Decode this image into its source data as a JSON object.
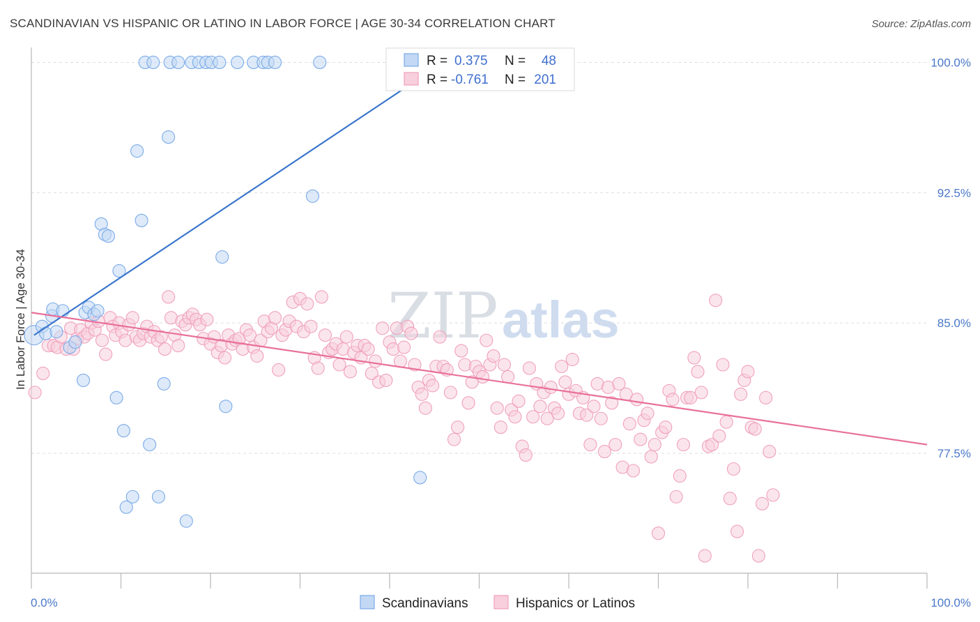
{
  "chart_data": {
    "type": "scatter",
    "title": "SCANDINAVIAN VS HISPANIC OR LATINO IN LABOR FORCE | AGE 30-34 CORRELATION CHART",
    "source": "Source: ZipAtlas.com",
    "ylabel": "In Labor Force | Age 30-34",
    "xlim": [
      0,
      100
    ],
    "ylim": [
      70.6,
      100.7
    ],
    "yticks": [
      {
        "value": 100.0,
        "label": "100.0%"
      },
      {
        "value": 92.5,
        "label": "92.5%"
      },
      {
        "value": 85.0,
        "label": "85.0%"
      },
      {
        "value": 77.5,
        "label": "77.5%"
      }
    ],
    "xtick_labels": {
      "left": "0.0%",
      "right": "100.0%"
    },
    "watermark": {
      "zip": "ZIP",
      "atlas": "atlas"
    },
    "legend": {
      "r_label": "R =",
      "n_label": "N =",
      "entries": [
        {
          "r": "0.375",
          "n": "48"
        },
        {
          "r": "-0.761",
          "n": "201"
        }
      ]
    },
    "series": [
      {
        "name": "Scandinavians",
        "color": "#7aaae8",
        "fill": "#c3d8f4",
        "trend": {
          "x0": 0.3,
          "y0": 84.3,
          "x1": 46.0,
          "y1": 100.0,
          "color": "#3a76cc"
        },
        "points": [
          [
            0.3,
            84.3
          ],
          [
            1.2,
            84.8
          ],
          [
            1.6,
            84.4
          ],
          [
            2.3,
            85.4
          ],
          [
            2.4,
            85.8
          ],
          [
            2.8,
            84.5
          ],
          [
            3.5,
            85.7
          ],
          [
            4.3,
            83.6
          ],
          [
            4.9,
            83.9
          ],
          [
            6.0,
            85.6
          ],
          [
            6.4,
            85.9
          ],
          [
            7.0,
            85.5
          ],
          [
            7.4,
            85.7
          ],
          [
            5.8,
            81.7
          ],
          [
            7.8,
            90.7
          ],
          [
            8.2,
            90.1
          ],
          [
            8.6,
            90.0
          ],
          [
            9.5,
            80.7
          ],
          [
            9.8,
            88.0
          ],
          [
            10.3,
            78.8
          ],
          [
            10.6,
            74.4
          ],
          [
            11.3,
            75.0
          ],
          [
            11.8,
            94.9
          ],
          [
            12.3,
            90.9
          ],
          [
            12.7,
            100.0
          ],
          [
            13.2,
            78.0
          ],
          [
            13.6,
            100.0
          ],
          [
            14.2,
            75.0
          ],
          [
            14.8,
            81.5
          ],
          [
            15.3,
            95.7
          ],
          [
            15.5,
            100.0
          ],
          [
            16.4,
            100.0
          ],
          [
            17.3,
            73.6
          ],
          [
            17.9,
            100.0
          ],
          [
            18.7,
            100.0
          ],
          [
            19.5,
            100.0
          ],
          [
            20.1,
            100.0
          ],
          [
            21.0,
            100.0
          ],
          [
            21.3,
            88.8
          ],
          [
            21.7,
            80.2
          ],
          [
            23.0,
            100.0
          ],
          [
            24.8,
            100.0
          ],
          [
            25.9,
            100.0
          ],
          [
            26.4,
            100.0
          ],
          [
            27.2,
            100.0
          ],
          [
            31.4,
            92.3
          ],
          [
            32.2,
            100.0
          ],
          [
            43.4,
            76.1
          ]
        ]
      },
      {
        "name": "Hispanics or Latinos",
        "color": "#f0a0bc",
        "fill": "#f8cfdc",
        "trend": {
          "x0": 0.0,
          "y0": 85.6,
          "x1": 100.0,
          "y1": 78.0,
          "color": "#e8709a"
        },
        "points": [
          [
            0.4,
            81.0
          ],
          [
            1.3,
            82.1
          ],
          [
            1.9,
            83.7
          ],
          [
            2.5,
            83.7
          ],
          [
            2.9,
            83.6
          ],
          [
            3.3,
            84.2
          ],
          [
            3.9,
            83.5
          ],
          [
            4.4,
            84.7
          ],
          [
            4.7,
            83.5
          ],
          [
            5.1,
            84.1
          ],
          [
            5.5,
            84.6
          ],
          [
            5.9,
            84.2
          ],
          [
            6.3,
            84.4
          ],
          [
            6.7,
            85.0
          ],
          [
            7.1,
            84.6
          ],
          [
            7.5,
            85.1
          ],
          [
            7.9,
            84.0
          ],
          [
            8.3,
            83.2
          ],
          [
            8.8,
            85.3
          ],
          [
            9.1,
            84.8
          ],
          [
            9.4,
            84.3
          ],
          [
            9.8,
            85.0
          ],
          [
            10.1,
            84.5
          ],
          [
            10.5,
            84.0
          ],
          [
            10.9,
            84.9
          ],
          [
            11.3,
            85.3
          ],
          [
            11.7,
            84.2
          ],
          [
            12.1,
            84.0
          ],
          [
            12.5,
            84.4
          ],
          [
            12.9,
            84.8
          ],
          [
            13.3,
            84.2
          ],
          [
            13.7,
            84.5
          ],
          [
            14.1,
            84.0
          ],
          [
            14.5,
            84.2
          ],
          [
            14.9,
            83.5
          ],
          [
            15.3,
            86.5
          ],
          [
            15.6,
            85.3
          ],
          [
            16.0,
            84.3
          ],
          [
            16.4,
            83.7
          ],
          [
            16.8,
            85.1
          ],
          [
            17.2,
            84.9
          ],
          [
            17.6,
            85.3
          ],
          [
            18.0,
            85.5
          ],
          [
            18.4,
            85.2
          ],
          [
            18.8,
            84.9
          ],
          [
            19.2,
            84.1
          ],
          [
            19.6,
            85.2
          ],
          [
            20.0,
            83.8
          ],
          [
            20.4,
            84.2
          ],
          [
            20.8,
            83.3
          ],
          [
            21.2,
            83.7
          ],
          [
            21.6,
            83.0
          ],
          [
            22.0,
            84.3
          ],
          [
            22.4,
            83.8
          ],
          [
            22.8,
            84.0
          ],
          [
            23.2,
            84.1
          ],
          [
            23.6,
            83.5
          ],
          [
            24.0,
            84.6
          ],
          [
            24.4,
            84.3
          ],
          [
            24.8,
            83.6
          ],
          [
            25.2,
            83.1
          ],
          [
            25.6,
            84.0
          ],
          [
            26.0,
            85.1
          ],
          [
            26.4,
            84.5
          ],
          [
            26.8,
            84.7
          ],
          [
            27.2,
            85.3
          ],
          [
            27.6,
            82.3
          ],
          [
            28.0,
            84.3
          ],
          [
            28.4,
            84.6
          ],
          [
            28.8,
            85.1
          ],
          [
            29.2,
            86.2
          ],
          [
            29.6,
            84.8
          ],
          [
            30.0,
            86.4
          ],
          [
            30.4,
            84.5
          ],
          [
            30.8,
            86.1
          ],
          [
            31.2,
            84.8
          ],
          [
            31.6,
            83.0
          ],
          [
            32.0,
            82.4
          ],
          [
            32.4,
            86.5
          ],
          [
            32.8,
            84.3
          ],
          [
            33.2,
            83.3
          ],
          [
            33.6,
            83.5
          ],
          [
            34.0,
            83.8
          ],
          [
            34.4,
            82.6
          ],
          [
            34.8,
            83.5
          ],
          [
            35.2,
            84.2
          ],
          [
            35.6,
            82.2
          ],
          [
            36.0,
            83.3
          ],
          [
            36.4,
            83.7
          ],
          [
            36.8,
            83.0
          ],
          [
            37.2,
            83.7
          ],
          [
            37.6,
            83.5
          ],
          [
            38.0,
            82.1
          ],
          [
            38.4,
            82.8
          ],
          [
            38.8,
            81.6
          ],
          [
            39.2,
            84.7
          ],
          [
            39.6,
            81.7
          ],
          [
            40.0,
            83.9
          ],
          [
            40.4,
            83.5
          ],
          [
            40.8,
            84.7
          ],
          [
            41.2,
            82.8
          ],
          [
            41.6,
            83.6
          ],
          [
            42.0,
            84.8
          ],
          [
            42.4,
            84.4
          ],
          [
            42.8,
            82.6
          ],
          [
            43.2,
            81.3
          ],
          [
            43.6,
            80.9
          ],
          [
            44.0,
            80.1
          ],
          [
            44.4,
            81.7
          ],
          [
            44.8,
            81.4
          ],
          [
            45.2,
            82.5
          ],
          [
            45.6,
            84.2
          ],
          [
            46.0,
            82.5
          ],
          [
            46.4,
            82.3
          ],
          [
            46.8,
            81.0
          ],
          [
            47.2,
            78.3
          ],
          [
            47.6,
            79.0
          ],
          [
            48.0,
            83.4
          ],
          [
            48.4,
            82.6
          ],
          [
            48.8,
            80.4
          ],
          [
            49.2,
            81.6
          ],
          [
            49.6,
            82.5
          ],
          [
            50.0,
            82.2
          ],
          [
            50.4,
            81.9
          ],
          [
            50.8,
            84.0
          ],
          [
            51.2,
            82.6
          ],
          [
            51.6,
            83.1
          ],
          [
            52.0,
            80.1
          ],
          [
            52.4,
            79.0
          ],
          [
            52.8,
            82.6
          ],
          [
            53.2,
            81.9
          ],
          [
            53.6,
            80.0
          ],
          [
            54.0,
            79.6
          ],
          [
            54.4,
            80.5
          ],
          [
            54.8,
            77.9
          ],
          [
            55.2,
            77.4
          ],
          [
            55.6,
            82.4
          ],
          [
            56.0,
            79.6
          ],
          [
            56.4,
            81.5
          ],
          [
            56.8,
            80.2
          ],
          [
            57.2,
            81.0
          ],
          [
            57.6,
            79.5
          ],
          [
            58.0,
            81.3
          ],
          [
            58.4,
            80.1
          ],
          [
            58.8,
            79.8
          ],
          [
            59.2,
            82.5
          ],
          [
            59.6,
            81.6
          ],
          [
            60.0,
            80.9
          ],
          [
            60.4,
            82.9
          ],
          [
            60.8,
            81.1
          ],
          [
            61.2,
            79.8
          ],
          [
            61.6,
            80.7
          ],
          [
            62.0,
            79.7
          ],
          [
            62.4,
            78.0
          ],
          [
            62.8,
            80.2
          ],
          [
            63.2,
            81.5
          ],
          [
            63.6,
            79.5
          ],
          [
            64.0,
            77.6
          ],
          [
            64.4,
            81.3
          ],
          [
            64.8,
            80.4
          ],
          [
            65.2,
            78.0
          ],
          [
            65.6,
            81.5
          ],
          [
            66.0,
            76.7
          ],
          [
            66.4,
            80.9
          ],
          [
            66.8,
            79.2
          ],
          [
            67.2,
            76.5
          ],
          [
            67.6,
            80.6
          ],
          [
            68.0,
            78.3
          ],
          [
            68.4,
            79.4
          ],
          [
            68.8,
            79.8
          ],
          [
            69.2,
            77.3
          ],
          [
            69.6,
            78.0
          ],
          [
            70.0,
            72.9
          ],
          [
            70.4,
            78.7
          ],
          [
            70.8,
            79.0
          ],
          [
            71.2,
            81.1
          ],
          [
            71.6,
            80.6
          ],
          [
            72.0,
            75.0
          ],
          [
            72.4,
            76.2
          ],
          [
            72.8,
            78.0
          ],
          [
            73.2,
            80.7
          ],
          [
            73.6,
            80.7
          ],
          [
            74.0,
            83.0
          ],
          [
            74.4,
            82.2
          ],
          [
            74.8,
            81.0
          ],
          [
            75.2,
            71.6
          ],
          [
            75.6,
            77.9
          ],
          [
            76.0,
            78.0
          ],
          [
            76.4,
            86.3
          ],
          [
            76.8,
            78.5
          ],
          [
            77.2,
            82.6
          ],
          [
            77.6,
            79.3
          ],
          [
            78.0,
            74.9
          ],
          [
            78.4,
            76.6
          ],
          [
            78.8,
            73.0
          ],
          [
            79.2,
            80.9
          ],
          [
            79.6,
            81.7
          ],
          [
            80.0,
            82.2
          ],
          [
            80.4,
            79.0
          ],
          [
            80.8,
            78.9
          ],
          [
            81.2,
            71.6
          ],
          [
            81.6,
            74.6
          ],
          [
            82.0,
            80.7
          ],
          [
            82.4,
            77.6
          ],
          [
            82.8,
            75.1
          ]
        ]
      }
    ]
  },
  "bottom_legend": [
    "Scandinavians",
    "Hispanics or Latinos"
  ]
}
